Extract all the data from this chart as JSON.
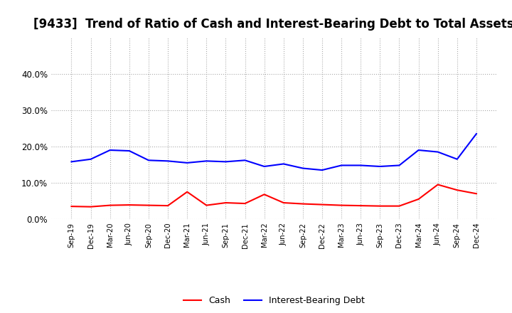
{
  "title": "[9433]  Trend of Ratio of Cash and Interest-Bearing Debt to Total Assets",
  "x_labels": [
    "Sep-19",
    "Dec-19",
    "Mar-20",
    "Jun-20",
    "Sep-20",
    "Dec-20",
    "Mar-21",
    "Jun-21",
    "Sep-21",
    "Dec-21",
    "Mar-22",
    "Jun-22",
    "Sep-22",
    "Dec-22",
    "Mar-23",
    "Jun-23",
    "Sep-23",
    "Dec-23",
    "Mar-24",
    "Jun-24",
    "Sep-24",
    "Dec-24"
  ],
  "cash": [
    3.5,
    3.4,
    3.8,
    3.9,
    3.8,
    3.7,
    7.5,
    3.8,
    4.5,
    4.3,
    6.8,
    4.5,
    4.2,
    4.0,
    3.8,
    3.7,
    3.6,
    3.6,
    5.5,
    9.5,
    8.0,
    7.0
  ],
  "debt": [
    15.8,
    16.5,
    19.0,
    18.8,
    16.2,
    16.0,
    15.5,
    16.0,
    15.8,
    16.2,
    14.5,
    15.2,
    14.0,
    13.5,
    14.8,
    14.8,
    14.5,
    14.8,
    19.0,
    18.5,
    16.5,
    23.5
  ],
  "cash_color": "#ff0000",
  "debt_color": "#0000ff",
  "ylim": [
    0,
    50
  ],
  "yticks": [
    0.0,
    10.0,
    20.0,
    30.0,
    40.0
  ],
  "background_color": "#ffffff",
  "plot_bg_color": "#ffffff",
  "grid_color": "#aaaaaa",
  "title_fontsize": 12,
  "legend_labels": [
    "Cash",
    "Interest-Bearing Debt"
  ]
}
